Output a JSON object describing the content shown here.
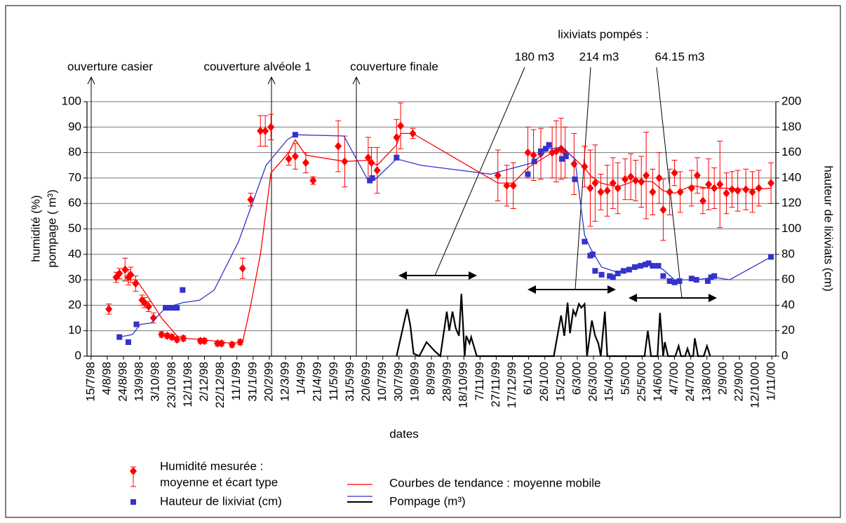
{
  "chart_data": {
    "type": "combo",
    "xlabel": "dates",
    "ylabel": "humidité (%)\npompage ( m³)",
    "y2label": "hauteur de lixiviats (cm)",
    "annotations": {
      "opening": "ouverture casier",
      "cover1": "couverture alvéole 1",
      "cover_final": "couverture finale",
      "pumped": "lixiviats pompés :",
      "p1": "180 m3",
      "p2": "214 m3",
      "p3": "64.15 m3"
    },
    "trend_label": "Courbes de tendance : moyenne mobile",
    "grid": true,
    "xlim": [
      "1998-07-10",
      "2000-11-06"
    ],
    "ylim": [
      0,
      100
    ],
    "yticks": [
      0,
      10,
      20,
      30,
      40,
      50,
      60,
      70,
      80,
      90,
      100
    ],
    "y2lim": [
      0,
      200
    ],
    "y2ticks": [
      0,
      20,
      40,
      60,
      80,
      100,
      120,
      140,
      160,
      180,
      200
    ],
    "xticks": [
      {
        "value": "1998-07-15",
        "label": "15/7/98"
      },
      {
        "value": "1998-08-04",
        "label": "4/8/98"
      },
      {
        "value": "1998-08-24",
        "label": "24/8/98"
      },
      {
        "value": "1998-09-13",
        "label": "13/9/98"
      },
      {
        "value": "1998-10-03",
        "label": "3/10/98"
      },
      {
        "value": "1998-10-23",
        "label": "23/10/98"
      },
      {
        "value": "1998-11-12",
        "label": "12/11/98"
      },
      {
        "value": "1998-12-02",
        "label": "2/12/98"
      },
      {
        "value": "1998-12-22",
        "label": "22/12/98"
      },
      {
        "value": "1999-01-11",
        "label": "11/1/99"
      },
      {
        "value": "1999-01-31",
        "label": "31/1/99"
      },
      {
        "value": "1999-02-20",
        "label": "20/2/99"
      },
      {
        "value": "1999-03-12",
        "label": "12/3/99"
      },
      {
        "value": "1999-04-01",
        "label": "1/4/99"
      },
      {
        "value": "1999-04-21",
        "label": "21/4/99"
      },
      {
        "value": "1999-05-11",
        "label": "11/5/99"
      },
      {
        "value": "1999-05-31",
        "label": "31/5/99"
      },
      {
        "value": "1999-06-20",
        "label": "20/6/99"
      },
      {
        "value": "1999-07-10",
        "label": "10/7/99"
      },
      {
        "value": "1999-07-30",
        "label": "30/7/99"
      },
      {
        "value": "1999-08-19",
        "label": "19/8/99"
      },
      {
        "value": "1999-09-08",
        "label": "8/9/99"
      },
      {
        "value": "1999-09-28",
        "label": "28/9/99"
      },
      {
        "value": "1999-10-18",
        "label": "18/10/99"
      },
      {
        "value": "1999-11-07",
        "label": "7/11/99"
      },
      {
        "value": "1999-11-27",
        "label": "27/11/99"
      },
      {
        "value": "1999-12-17",
        "label": "17/12/99"
      },
      {
        "value": "2000-01-06",
        "label": "6/1/00"
      },
      {
        "value": "2000-01-26",
        "label": "26/1/00"
      },
      {
        "value": "2000-02-15",
        "label": "15/2/00"
      },
      {
        "value": "2000-03-06",
        "label": "6/3/00"
      },
      {
        "value": "2000-03-26",
        "label": "26/3/00"
      },
      {
        "value": "2000-04-15",
        "label": "15/4/00"
      },
      {
        "value": "2000-05-05",
        "label": "5/5/00"
      },
      {
        "value": "2000-05-25",
        "label": "25/5/00"
      },
      {
        "value": "2000-06-14",
        "label": "14/6/00"
      },
      {
        "value": "2000-07-04",
        "label": "4/7/00"
      },
      {
        "value": "2000-07-24",
        "label": "24/7/00"
      },
      {
        "value": "2000-08-13",
        "label": "13/8/00"
      },
      {
        "value": "2000-09-02",
        "label": "2/9/00"
      },
      {
        "value": "2000-09-22",
        "label": "22/9/00"
      },
      {
        "value": "2000-10-12",
        "label": "12/10/00"
      },
      {
        "value": "2000-11-01",
        "label": "1/11/00"
      }
    ],
    "series": [
      {
        "name": "Humidité mesurée :\nmoyenne et écart type",
        "type": "scatter",
        "marker": "diamond",
        "color": "#ff0000",
        "x": [
          "1998-08-06",
          "1998-08-15",
          "1998-08-19",
          "1998-08-26",
          "1998-08-30",
          "1998-09-02",
          "1998-09-08",
          "1998-09-16",
          "1998-09-19",
          "1998-09-24",
          "1998-09-30",
          "1998-10-10",
          "1998-10-17",
          "1998-10-23",
          "1998-10-29",
          "1998-11-06",
          "1998-11-27",
          "1998-12-02",
          "1998-12-18",
          "1998-12-23",
          "1999-01-05",
          "1999-01-15",
          "1999-01-18",
          "1999-01-28",
          "1999-02-09",
          "1999-02-15",
          "1999-02-22",
          "1999-03-16",
          "1999-03-24",
          "1999-04-06",
          "1999-04-15",
          "1999-05-16",
          "1999-05-24",
          "1999-06-22",
          "1999-06-26",
          "1999-07-03",
          "1999-07-27",
          "1999-08-01",
          "1999-08-16",
          "1999-11-29",
          "1999-12-10",
          "1999-12-18",
          "2000-01-05",
          "2000-01-12",
          "2000-01-21",
          "2000-02-04",
          "2000-02-09",
          "2000-02-15",
          "2000-02-20",
          "2000-03-02",
          "2000-03-15",
          "2000-03-22",
          "2000-03-28",
          "2000-04-04",
          "2000-04-12",
          "2000-04-19",
          "2000-04-25",
          "2000-05-04",
          "2000-05-11",
          "2000-05-17",
          "2000-05-24",
          "2000-05-30",
          "2000-06-07",
          "2000-06-15",
          "2000-06-20",
          "2000-06-28",
          "2000-07-04",
          "2000-07-11",
          "2000-07-25",
          "2000-08-01",
          "2000-08-08",
          "2000-08-15",
          "2000-08-22",
          "2000-08-29",
          "2000-09-06",
          "2000-09-13",
          "2000-09-20",
          "2000-09-30",
          "2000-10-08",
          "2000-10-16",
          "2000-10-31"
        ],
        "values": [
          18.5,
          31,
          32.5,
          34,
          31,
          32,
          28.5,
          22,
          21,
          19.5,
          15,
          8.5,
          8,
          7.5,
          6.5,
          7,
          6,
          6,
          5,
          5,
          4.5,
          5.5,
          34.5,
          61.5,
          88.5,
          88.5,
          90,
          77.5,
          78.5,
          76,
          69,
          82.5,
          76.5,
          78,
          76,
          73,
          86,
          90.5,
          87.5,
          71,
          67,
          67,
          80,
          79,
          79.5,
          80,
          80.5,
          81.5,
          80,
          75.5,
          74.5,
          66,
          68,
          64.5,
          65,
          68,
          66,
          69.5,
          70.5,
          69,
          68.5,
          71,
          64.5,
          70,
          57.5,
          64.5,
          72,
          64.5,
          66,
          71,
          61,
          67.5,
          66,
          67.5,
          64,
          65.5,
          65,
          65.5,
          64.5,
          66,
          68
        ],
        "errors": [
          2,
          2,
          2,
          4.5,
          3,
          3,
          3,
          2,
          2,
          2,
          2,
          1,
          1,
          1,
          1,
          1,
          1,
          1,
          1,
          1,
          1,
          1,
          4,
          2.5,
          6,
          6,
          5,
          2.5,
          5,
          4,
          1.5,
          10,
          10,
          8,
          6,
          9,
          7,
          9,
          2,
          10,
          8,
          9,
          10,
          10,
          10,
          10,
          12,
          12,
          10,
          12,
          8,
          15,
          15,
          7,
          10,
          10,
          10,
          8,
          9,
          8,
          10,
          17,
          9,
          10,
          12,
          9,
          5,
          8,
          7,
          7,
          5,
          10,
          8,
          17,
          8,
          7,
          8,
          8,
          8,
          7,
          8
        ]
      },
      {
        "name": "Hauteur de lixiviat (cm)",
        "type": "scatter",
        "marker": "square",
        "color": "#3333cc",
        "axis": "y2",
        "x": [
          "1998-08-19",
          "1998-08-30",
          "1998-09-09",
          "1998-10-15",
          "1998-10-19",
          "1998-10-24",
          "1998-10-29",
          "1998-11-05",
          "1999-03-24",
          "1999-06-24",
          "1999-06-27",
          "1999-07-27",
          "2000-01-05",
          "2000-01-13",
          "2000-01-21",
          "2000-01-27",
          "2000-01-31",
          "2000-02-16",
          "2000-02-21",
          "2000-03-03",
          "2000-03-15",
          "2000-03-22",
          "2000-03-25",
          "2000-03-28",
          "2000-04-05",
          "2000-04-15",
          "2000-04-19",
          "2000-04-25",
          "2000-05-02",
          "2000-05-09",
          "2000-05-16",
          "2000-05-23",
          "2000-05-29",
          "2000-06-02",
          "2000-06-07",
          "2000-06-14",
          "2000-06-20",
          "2000-06-28",
          "2000-07-04",
          "2000-07-10",
          "2000-07-25",
          "2000-07-31",
          "2000-08-14",
          "2000-08-18",
          "2000-08-22",
          "2000-10-31"
        ],
        "values": [
          15,
          11,
          25,
          38,
          38,
          38,
          38,
          52,
          174,
          138,
          140,
          156,
          143,
          153,
          161,
          163,
          166,
          155,
          157,
          139,
          90,
          79,
          80,
          67,
          64,
          63,
          62,
          65,
          67,
          68,
          70,
          71,
          72,
          73,
          71,
          71,
          63,
          59,
          58,
          59,
          61,
          60,
          59,
          62,
          63,
          78
        ]
      },
      {
        "type": "line",
        "color": "#ff0000",
        "x": [
          "1998-08-30",
          "1998-09-09",
          "1998-09-24",
          "1998-10-10",
          "1998-10-29",
          "1998-11-06",
          "1998-11-30",
          "1999-01-05",
          "1999-01-18",
          "1999-01-28",
          "1999-02-09",
          "1999-02-22",
          "1999-03-16",
          "1999-03-24",
          "1999-04-06",
          "1999-05-24",
          "1999-06-22",
          "1999-07-03",
          "1999-07-27",
          "1999-08-01",
          "1999-08-16",
          "1999-11-29",
          "1999-12-18",
          "2000-01-05",
          "2000-02-04",
          "2000-02-20",
          "2000-03-15",
          "2000-03-22",
          "2000-04-04",
          "2000-04-25",
          "2000-05-17",
          "2000-06-07",
          "2000-06-20",
          "2000-07-04",
          "2000-07-25",
          "2000-08-15",
          "2000-09-06",
          "2000-10-08",
          "2000-10-31"
        ],
        "values": [
          30,
          30,
          23,
          15,
          8,
          7,
          6.5,
          5,
          5.5,
          20,
          40,
          72,
          80,
          85,
          79,
          76.5,
          77,
          75,
          83,
          87.5,
          87.5,
          68,
          68,
          74,
          80,
          81,
          74,
          71,
          68,
          66.5,
          69,
          68.5,
          65,
          64,
          67,
          66,
          66,
          65.5,
          66
        ]
      },
      {
        "type": "line",
        "color": "#3333cc",
        "axis": "y2",
        "x": [
          "1998-08-19",
          "1998-09-04",
          "1998-09-14",
          "1998-09-27",
          "1998-10-15",
          "1998-11-05",
          "1998-11-26",
          "1998-12-14",
          "1999-01-13",
          "1999-02-16",
          "1999-03-14",
          "1999-03-24",
          "1999-05-23",
          "1999-06-22",
          "1999-06-29",
          "1999-07-09",
          "1999-07-27",
          "1999-08-26",
          "1999-11-20",
          "2000-01-11",
          "2000-01-31",
          "2000-02-16",
          "2000-03-03",
          "2000-03-15",
          "2000-03-22",
          "2000-04-05",
          "2000-04-24",
          "2000-05-16",
          "2000-06-07",
          "2000-06-20",
          "2000-07-04",
          "2000-07-31",
          "2000-08-22",
          "2000-09-10",
          "2000-10-31"
        ],
        "values": [
          15,
          17,
          25,
          26,
          38,
          42,
          44,
          52,
          90,
          150,
          170,
          174,
          173,
          138,
          138,
          144,
          155,
          150,
          143,
          152,
          163,
          164,
          155,
          95,
          85,
          70,
          66,
          70,
          72,
          68,
          60,
          60,
          62,
          60,
          78
        ]
      },
      {
        "name": "Pompage (m³)",
        "type": "line",
        "color": "#000000",
        "x": [
          "1999-07-27",
          "1999-08-09",
          "1999-08-13",
          "1999-08-17",
          "1999-08-24",
          "1999-09-02",
          "1999-09-12",
          "1999-09-19",
          "1999-09-27",
          "1999-09-30",
          "1999-10-04",
          "1999-10-08",
          "1999-10-12",
          "1999-10-15",
          "1999-10-19",
          "1999-10-21",
          "1999-10-25",
          "1999-10-27",
          "1999-11-03",
          "2000-02-06",
          "2000-02-15",
          "2000-02-19",
          "2000-02-23",
          "2000-02-26",
          "2000-03-01",
          "2000-03-04",
          "2000-03-08",
          "2000-03-11",
          "2000-03-15",
          "2000-03-18",
          "2000-03-24",
          "2000-03-28",
          "2000-04-01",
          "2000-04-04",
          "2000-04-09",
          "2000-04-12",
          "2000-05-28",
          "2000-06-01",
          "2000-06-05",
          "2000-06-13",
          "2000-06-16",
          "2000-06-20",
          "2000-06-22",
          "2000-06-26",
          "2000-07-05",
          "2000-07-09",
          "2000-07-12",
          "2000-07-17",
          "2000-07-20",
          "2000-07-23",
          "2000-07-27",
          "2000-07-29",
          "2000-08-02",
          "2000-08-09",
          "2000-08-13",
          "2000-08-17"
        ],
        "values": [
          0,
          18.5,
          12,
          1,
          0,
          5.5,
          2,
          0,
          17.5,
          10,
          17.5,
          11,
          8,
          24.5,
          0,
          8,
          5,
          7.5,
          0,
          0,
          16,
          8,
          21,
          9,
          18,
          16,
          20.5,
          19,
          20.5,
          0,
          14,
          8,
          5,
          0,
          17.5,
          0,
          0,
          10,
          0,
          0,
          17,
          0,
          5.5,
          0,
          0,
          4,
          0,
          0,
          3,
          0,
          0,
          7,
          0,
          0,
          4,
          0
        ]
      }
    ]
  }
}
